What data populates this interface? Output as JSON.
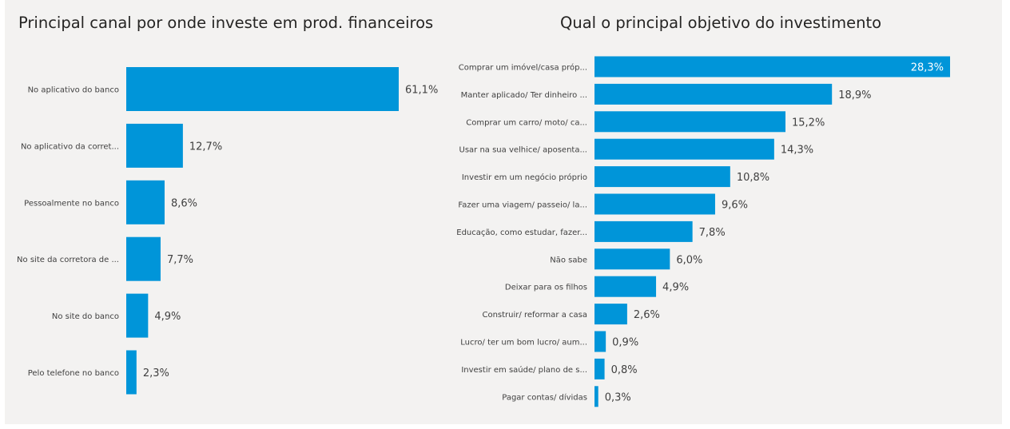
{
  "colors": {
    "bar": "#0095d9",
    "text": "#404040",
    "background": "#f3f2f1"
  },
  "chart_data": [
    {
      "type": "bar",
      "orientation": "horizontal",
      "title": "Principal canal por onde investe em prod. financeiros",
      "categories": [
        "No aplicativo do banco",
        "No aplicativo da corret...",
        "Pessoalmente no banco",
        "No site da corretora de ...",
        "No site do banco",
        "Pelo telefone no banco"
      ],
      "values": [
        61.1,
        12.7,
        8.6,
        7.7,
        4.9,
        2.3
      ],
      "value_labels": [
        "61,1%",
        "12,7%",
        "8,6%",
        "7,7%",
        "4,9%",
        "2,3%"
      ],
      "xlim": [
        0,
        61.1
      ],
      "grid": false,
      "legend": "none"
    },
    {
      "type": "bar",
      "orientation": "horizontal",
      "title": "Qual o principal objetivo do investimento",
      "categories": [
        "Comprar um imóvel/casa próp...",
        "Manter aplicado/ Ter dinheiro ...",
        "Comprar um carro/ moto/ ca...",
        "Usar na sua velhice/ aposenta...",
        "Investir em um negócio próprio",
        "Fazer uma viagem/ passeio/ la...",
        "Educação, como estudar, fazer...",
        "Não sabe",
        "Deixar para os filhos",
        "Construir/ reformar a casa",
        "Lucro/ ter um bom lucro/ aum...",
        "Investir em saúde/ plano de s...",
        "Pagar contas/ dívidas"
      ],
      "values": [
        28.3,
        18.9,
        15.2,
        14.3,
        10.8,
        9.6,
        7.8,
        6.0,
        4.9,
        2.6,
        0.9,
        0.8,
        0.3
      ],
      "value_labels": [
        "28,3%",
        "18,9%",
        "15,2%",
        "14,3%",
        "10,8%",
        "9,6%",
        "7,8%",
        "6,0%",
        "4,9%",
        "2,6%",
        "0,9%",
        "0,8%",
        "0,3%"
      ],
      "xlim": [
        0,
        28.3
      ],
      "grid": false,
      "legend": "none"
    }
  ]
}
